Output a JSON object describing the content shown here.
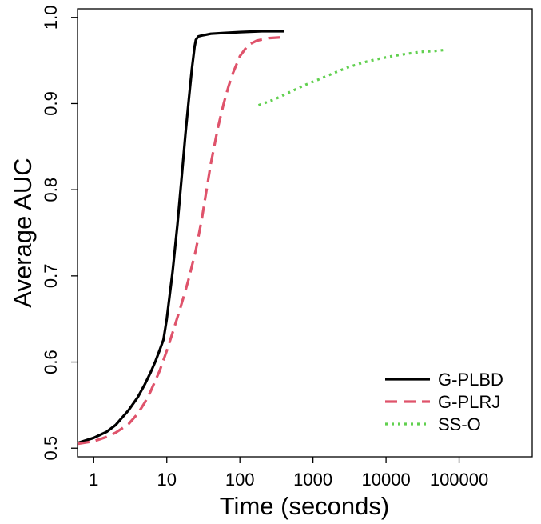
{
  "chart_data": {
    "type": "line",
    "title": "",
    "xlabel": "Time (seconds)",
    "ylabel": "Average AUC",
    "xscale": "log10",
    "xlim": [
      0.6,
      1000000
    ],
    "ylim": [
      0.49,
      1.01
    ],
    "x_ticks": [
      1,
      10,
      100,
      1000,
      10000,
      100000
    ],
    "x_tick_labels": [
      "1",
      "10",
      "100",
      "1000",
      "10000",
      "100000"
    ],
    "y_ticks": [
      0.5,
      0.6,
      0.7,
      0.8,
      0.9,
      1.0
    ],
    "y_tick_labels": [
      "0.5",
      "0.6",
      "0.7",
      "0.8",
      "0.9",
      "1.0"
    ],
    "grid": false,
    "legend_position": "bottom-right",
    "series": [
      {
        "name": "G-PLBD",
        "color": "#000000",
        "style": "solid",
        "x": [
          0.6,
          1,
          1.5,
          2,
          3,
          4,
          5,
          6,
          7,
          8,
          9,
          10,
          12,
          14,
          16,
          18,
          20,
          22,
          24,
          25,
          27,
          30,
          40,
          60,
          100,
          200,
          400
        ],
        "y": [
          0.506,
          0.512,
          0.519,
          0.527,
          0.544,
          0.559,
          0.574,
          0.588,
          0.601,
          0.614,
          0.626,
          0.65,
          0.705,
          0.76,
          0.815,
          0.865,
          0.905,
          0.94,
          0.966,
          0.974,
          0.978,
          0.979,
          0.981,
          0.982,
          0.983,
          0.984,
          0.984
        ]
      },
      {
        "name": "G-PLRJ",
        "color": "#DF536B",
        "style": "dashed",
        "x": [
          0.6,
          1,
          1.5,
          2,
          3,
          4,
          5,
          6,
          8,
          10,
          12,
          15,
          18,
          20,
          25,
          30,
          35,
          40,
          50,
          60,
          70,
          80,
          100,
          130,
          170,
          250,
          400
        ],
        "y": [
          0.505,
          0.508,
          0.513,
          0.518,
          0.528,
          0.54,
          0.553,
          0.566,
          0.59,
          0.613,
          0.634,
          0.66,
          0.683,
          0.697,
          0.73,
          0.765,
          0.8,
          0.83,
          0.872,
          0.9,
          0.92,
          0.935,
          0.955,
          0.968,
          0.973,
          0.976,
          0.977
        ]
      },
      {
        "name": "SS-O",
        "color": "#61D04F",
        "style": "dotted",
        "x": [
          180,
          300,
          500,
          800,
          1200,
          2000,
          3000,
          5000,
          8000,
          12000,
          20000,
          30000,
          45000,
          60000
        ],
        "y": [
          0.898,
          0.905,
          0.914,
          0.922,
          0.928,
          0.936,
          0.942,
          0.948,
          0.952,
          0.955,
          0.958,
          0.96,
          0.961,
          0.962
        ]
      }
    ]
  }
}
